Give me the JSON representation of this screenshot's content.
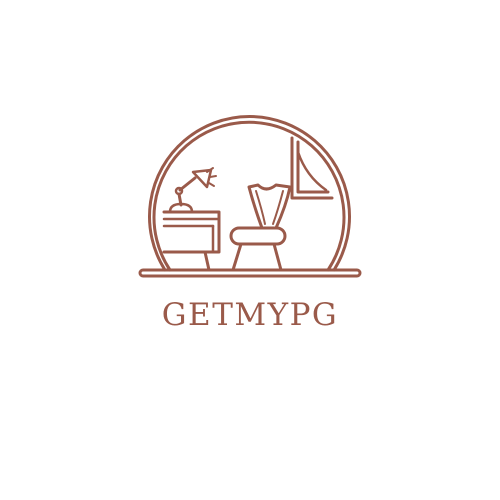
{
  "brand": {
    "name": "GETMYPG",
    "color": "#9a5a4a",
    "background": "#ffffff"
  },
  "logo": {
    "icons": [
      "arch-frame-icon",
      "desk-lamp-icon",
      "desk-icon",
      "chair-icon",
      "window-curtain-icon",
      "floor-line-icon"
    ]
  }
}
